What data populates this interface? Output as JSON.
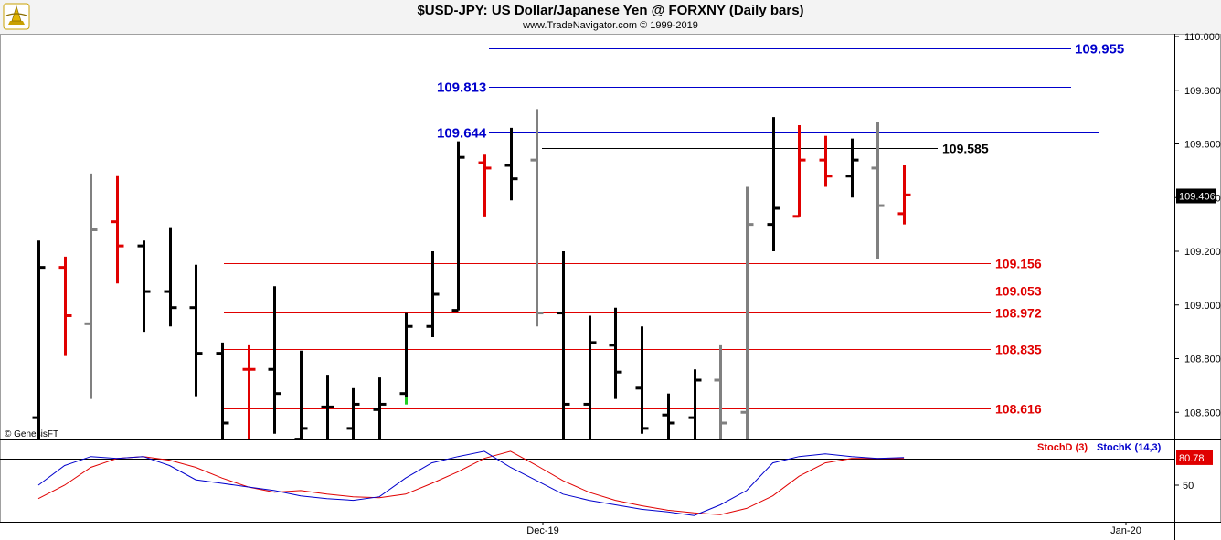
{
  "header": {
    "title": "$USD-JPY:  US Dollar/Japanese Yen @ FORXNY  (Daily bars)",
    "subtitle": "www.TradeNavigator.com © 1999-2019"
  },
  "watermark": "© GenesisFT",
  "colors": {
    "up_bar": "#000000",
    "down_bar": "#e00000",
    "neutral_bar": "#808080",
    "blue_level": "#0000cc",
    "red_level": "#e00000",
    "black_level": "#000000",
    "stoch_d": "#e00000",
    "stoch_k": "#0000cc",
    "last_price_bg": "#000000",
    "stoch_value_bg": "#e00000"
  },
  "chart_data": [
    {
      "type": "ohlc",
      "y_axis": {
        "ticks": [
          "110.000",
          "109.800",
          "109.600",
          "109.400",
          "109.200",
          "109.000",
          "108.800",
          "108.600"
        ],
        "ylim": [
          108.5,
          110.02
        ]
      },
      "x_axis": {
        "ticks": [
          "Dec-19",
          "Jan-20"
        ]
      },
      "last_price_label": "109.406",
      "levels": [
        {
          "value": 109.955,
          "label": "109.955",
          "color": "blue"
        },
        {
          "value": 109.813,
          "label": "109.813",
          "color": "blue"
        },
        {
          "value": 109.644,
          "label": "109.644",
          "color": "blue"
        },
        {
          "value": 109.585,
          "label": "109.585",
          "color": "black"
        },
        {
          "value": 109.156,
          "label": "109.156",
          "color": "red"
        },
        {
          "value": 109.053,
          "label": "109.053",
          "color": "red"
        },
        {
          "value": 108.972,
          "label": "108.972",
          "color": "red"
        },
        {
          "value": 108.835,
          "label": "108.835",
          "color": "red"
        },
        {
          "value": 108.616,
          "label": "108.616",
          "color": "red"
        }
      ],
      "bars": [
        {
          "o": 108.58,
          "h": 109.24,
          "l": 108.5,
          "c": 109.14,
          "color": "black"
        },
        {
          "o": 109.14,
          "h": 109.18,
          "l": 108.81,
          "c": 108.96,
          "color": "red"
        },
        {
          "o": 108.93,
          "h": 109.49,
          "l": 108.65,
          "c": 109.28,
          "color": "gray"
        },
        {
          "o": 109.31,
          "h": 109.48,
          "l": 109.08,
          "c": 109.22,
          "color": "red"
        },
        {
          "o": 109.22,
          "h": 109.24,
          "l": 108.9,
          "c": 109.05,
          "color": "black"
        },
        {
          "o": 109.05,
          "h": 109.29,
          "l": 108.92,
          "c": 108.99,
          "color": "black"
        },
        {
          "o": 108.99,
          "h": 109.15,
          "l": 108.66,
          "c": 108.82,
          "color": "black"
        },
        {
          "o": 108.82,
          "h": 108.86,
          "l": 108.48,
          "c": 108.56,
          "color": "black"
        },
        {
          "o": 108.76,
          "h": 108.85,
          "l": 108.5,
          "c": 108.76,
          "color": "red"
        },
        {
          "o": 108.76,
          "h": 109.07,
          "l": 108.52,
          "c": 108.67,
          "color": "black"
        },
        {
          "o": 108.5,
          "h": 108.83,
          "l": 108.46,
          "c": 108.54,
          "color": "black"
        },
        {
          "o": 108.62,
          "h": 108.74,
          "l": 108.47,
          "c": 108.62,
          "color": "black"
        },
        {
          "o": 108.54,
          "h": 108.69,
          "l": 108.5,
          "c": 108.63,
          "color": "black"
        },
        {
          "o": 108.61,
          "h": 108.73,
          "l": 108.48,
          "c": 108.63,
          "color": "black"
        },
        {
          "o": 108.67,
          "h": 108.97,
          "l": 108.63,
          "c": 108.92,
          "color": "black",
          "marker": "green"
        },
        {
          "o": 108.92,
          "h": 109.2,
          "l": 108.88,
          "c": 109.04,
          "color": "black"
        },
        {
          "o": 108.98,
          "h": 109.61,
          "l": 108.98,
          "c": 109.55,
          "color": "black"
        },
        {
          "o": 109.53,
          "h": 109.56,
          "l": 109.33,
          "c": 109.51,
          "color": "red"
        },
        {
          "o": 109.52,
          "h": 109.66,
          "l": 109.39,
          "c": 109.47,
          "color": "black"
        },
        {
          "o": 109.54,
          "h": 109.73,
          "l": 108.92,
          "c": 108.97,
          "color": "gray"
        },
        {
          "o": 108.97,
          "h": 109.2,
          "l": 108.48,
          "c": 108.63,
          "color": "black"
        },
        {
          "o": 108.63,
          "h": 108.96,
          "l": 108.48,
          "c": 108.86,
          "color": "black"
        },
        {
          "o": 108.85,
          "h": 108.99,
          "l": 108.65,
          "c": 108.75,
          "color": "black"
        },
        {
          "o": 108.69,
          "h": 108.92,
          "l": 108.52,
          "c": 108.54,
          "color": "black"
        },
        {
          "o": 108.59,
          "h": 108.67,
          "l": 108.5,
          "c": 108.56,
          "color": "black"
        },
        {
          "o": 108.58,
          "h": 108.76,
          "l": 108.5,
          "c": 108.72,
          "color": "black"
        },
        {
          "o": 108.72,
          "h": 108.85,
          "l": 108.48,
          "c": 108.56,
          "color": "gray"
        },
        {
          "o": 108.6,
          "h": 109.44,
          "l": 108.5,
          "c": 109.3,
          "color": "gray"
        },
        {
          "o": 109.3,
          "h": 109.7,
          "l": 109.2,
          "c": 109.36,
          "color": "black"
        },
        {
          "o": 109.33,
          "h": 109.67,
          "l": 109.33,
          "c": 109.54,
          "color": "red"
        },
        {
          "o": 109.54,
          "h": 109.63,
          "l": 109.44,
          "c": 109.48,
          "color": "red"
        },
        {
          "o": 109.48,
          "h": 109.62,
          "l": 109.4,
          "c": 109.54,
          "color": "black"
        },
        {
          "o": 109.51,
          "h": 109.68,
          "l": 109.17,
          "c": 109.37,
          "color": "gray"
        },
        {
          "o": 109.34,
          "h": 109.52,
          "l": 109.3,
          "c": 109.41,
          "color": "red"
        }
      ]
    },
    {
      "type": "line",
      "title": "StochD (3)   StochK (14,3)",
      "y_axis": {
        "ticks": [
          "50"
        ],
        "ylim": [
          0,
          100
        ]
      },
      "value_label": "80.78",
      "reference_line": 80,
      "series": [
        {
          "name": "StochD (3)",
          "color": "red",
          "values": [
            35,
            50,
            70,
            80,
            82,
            78,
            70,
            58,
            48,
            42,
            44,
            40,
            37,
            36,
            40,
            52,
            65,
            80,
            88,
            72,
            55,
            42,
            33,
            27,
            22,
            19,
            17,
            24,
            38,
            60,
            75,
            80,
            80,
            80
          ]
        },
        {
          "name": "StochK (14,3)",
          "color": "blue",
          "values": [
            50,
            72,
            82,
            80,
            82,
            72,
            56,
            52,
            48,
            44,
            38,
            35,
            33,
            37,
            58,
            75,
            82,
            88,
            70,
            55,
            40,
            33,
            28,
            23,
            20,
            16,
            28,
            44,
            75,
            82,
            85,
            82,
            80,
            81
          ]
        }
      ]
    }
  ]
}
